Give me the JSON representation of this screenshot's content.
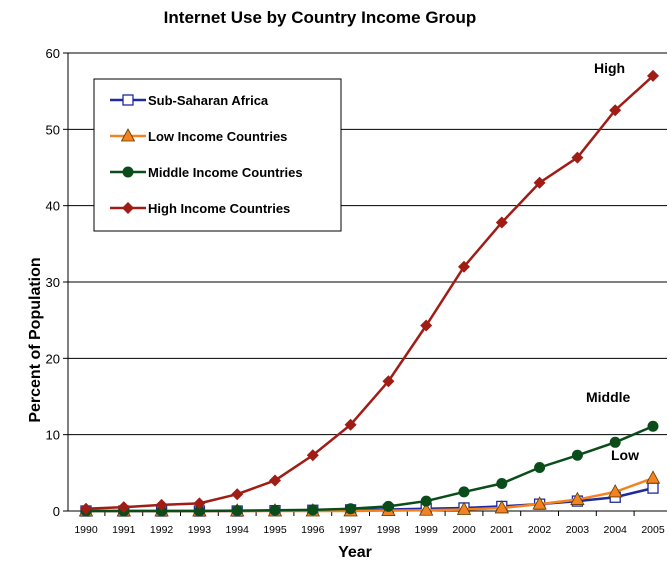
{
  "chart_data": {
    "type": "line",
    "title": "Internet Use by Country Income Group",
    "xlabel": "Year",
    "ylabel": "Percent of Population",
    "ylim": [
      0,
      60
    ],
    "yticks": [
      "0",
      "10",
      "20",
      "30",
      "40",
      "50",
      "60"
    ],
    "x": [
      "1990",
      "1991",
      "1992",
      "1993",
      "1994",
      "1995",
      "1996",
      "1997",
      "1998",
      "1999",
      "2000",
      "2001",
      "2002",
      "2003",
      "2004",
      "2005"
    ],
    "grid": true,
    "legend_position": "top-left",
    "series": [
      {
        "name": "Sub-Saharan Africa",
        "color": "#1f2a9c",
        "marker": "open-square",
        "values": [
          0,
          0,
          0,
          0,
          0,
          0.05,
          0.1,
          0.15,
          0.2,
          0.3,
          0.4,
          0.6,
          0.9,
          1.3,
          1.8,
          3.0
        ]
      },
      {
        "name": "Low Income Countries",
        "color": "#f58220",
        "marker": "triangle",
        "values": [
          0,
          0,
          0,
          0,
          0,
          0,
          0,
          0,
          0.05,
          0.1,
          0.2,
          0.4,
          0.9,
          1.5,
          2.5,
          4.3
        ]
      },
      {
        "name": "Middle Income Countries",
        "color": "#0b4d1a",
        "marker": "circle",
        "values": [
          0,
          0,
          0,
          0,
          0.05,
          0.1,
          0.15,
          0.3,
          0.6,
          1.3,
          2.5,
          3.6,
          5.7,
          7.3,
          9.0,
          11.1
        ]
      },
      {
        "name": "High Income Countries",
        "color": "#a01d16",
        "marker": "diamond",
        "values": [
          0.3,
          0.5,
          0.8,
          1.0,
          2.2,
          4.0,
          7.3,
          11.3,
          17.0,
          24.3,
          32.0,
          37.8,
          43.0,
          46.3,
          52.5,
          57.0
        ]
      }
    ],
    "annotations": [
      {
        "text": "High"
      },
      {
        "text": "Middle"
      },
      {
        "text": "Low"
      }
    ]
  }
}
